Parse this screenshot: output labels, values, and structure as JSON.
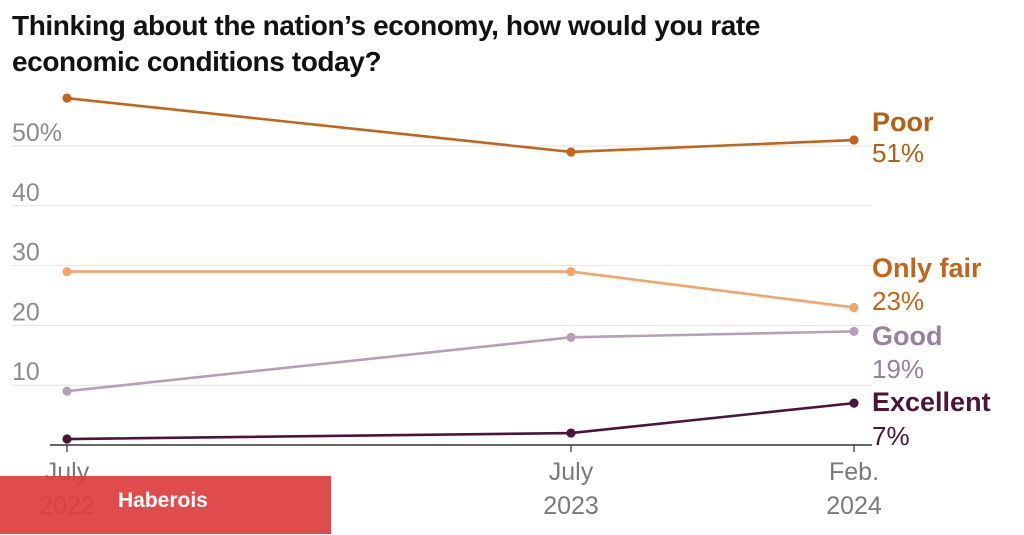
{
  "chart_data": {
    "type": "line",
    "title": "Thinking about the nation’s economy, how would you rate economic conditions today?",
    "x": [
      "July 2022",
      "July 2023",
      "Feb. 2024"
    ],
    "x_tick_lines": [
      [
        "July",
        "2022"
      ],
      [
        "July",
        "2023"
      ],
      [
        "Feb.",
        "2024"
      ]
    ],
    "y_ticks": [
      {
        "value": 10,
        "label": "10"
      },
      {
        "value": 20,
        "label": "20"
      },
      {
        "value": 30,
        "label": "30"
      },
      {
        "value": 40,
        "label": "40"
      },
      {
        "value": 50,
        "label": "50%"
      }
    ],
    "ylim": [
      0,
      60
    ],
    "grid": true,
    "series": [
      {
        "name": "Poor",
        "end_label": "51%",
        "values": [
          58,
          49,
          51
        ],
        "color": "#c2651a",
        "label_color": "#b85e14"
      },
      {
        "name": "Only fair",
        "end_label": "23%",
        "values": [
          29,
          29,
          23
        ],
        "color": "#f5a46a",
        "label_color": "#c2651a"
      },
      {
        "name": "Good",
        "end_label": "19%",
        "values": [
          9,
          18,
          19
        ],
        "color": "#b8a0b4",
        "label_color": "#98819a"
      },
      {
        "name": "Excellent",
        "end_label": "7%",
        "values": [
          1,
          2,
          7
        ],
        "color": "#4a1538",
        "label_color": "#4a1538"
      }
    ]
  },
  "watermark": {
    "text": "Haberois"
  }
}
